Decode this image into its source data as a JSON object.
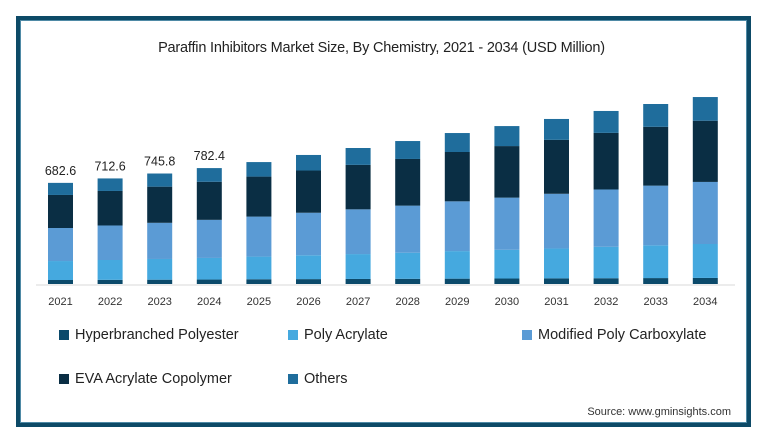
{
  "chart_data": {
    "type": "bar",
    "stacked": true,
    "title": "Paraffin Inhibitors Market Size, By Chemistry, 2021 - 2034 (USD Million)",
    "xlabel": "",
    "ylabel": "",
    "categories": [
      "2021",
      "2022",
      "2023",
      "2024",
      "2025",
      "2026",
      "2027",
      "2028",
      "2029",
      "2030",
      "2031",
      "2032",
      "2033",
      "2034"
    ],
    "totals_labeled": {
      "2021": "682.6",
      "2022": "712.6",
      "2023": "745.8",
      "2024": "782.4"
    },
    "series": [
      {
        "name": "Hyperbranched Polyester",
        "color": "#0b4a6b",
        "values": [
          27,
          28,
          29,
          30,
          32,
          33,
          34,
          35,
          36,
          37,
          38,
          39,
          40,
          41
        ]
      },
      {
        "name": "Poly Acrylate",
        "color": "#45a9df",
        "values": [
          128,
          134,
          140,
          146,
          153,
          161,
          168,
          176,
          186,
          194,
          202,
          212,
          221,
          229
        ]
      },
      {
        "name": "Modified Poly Carboxylate",
        "color": "#5b9bd5",
        "values": [
          223,
          233,
          244,
          257,
          270,
          287,
          302,
          318,
          336,
          352,
          369,
          387,
          403,
          419
        ]
      },
      {
        "name": "EVA Acrylate Copolymer",
        "color": "#0a2e44",
        "values": [
          223,
          233,
          244,
          257,
          270,
          285,
          300,
          315,
          333,
          348,
          364,
          382,
          397,
          413
        ]
      },
      {
        "name": "Others",
        "color": "#1f6d9c",
        "values": [
          81.6,
          84.6,
          88.8,
          92.4,
          98,
          105,
          114,
          121,
          128,
          135,
          141,
          148,
          154,
          160
        ]
      }
    ],
    "ylim": [
      0,
      1300
    ],
    "grid": false,
    "legend_position": "bottom"
  },
  "source": "Source: www.gminsights.com"
}
